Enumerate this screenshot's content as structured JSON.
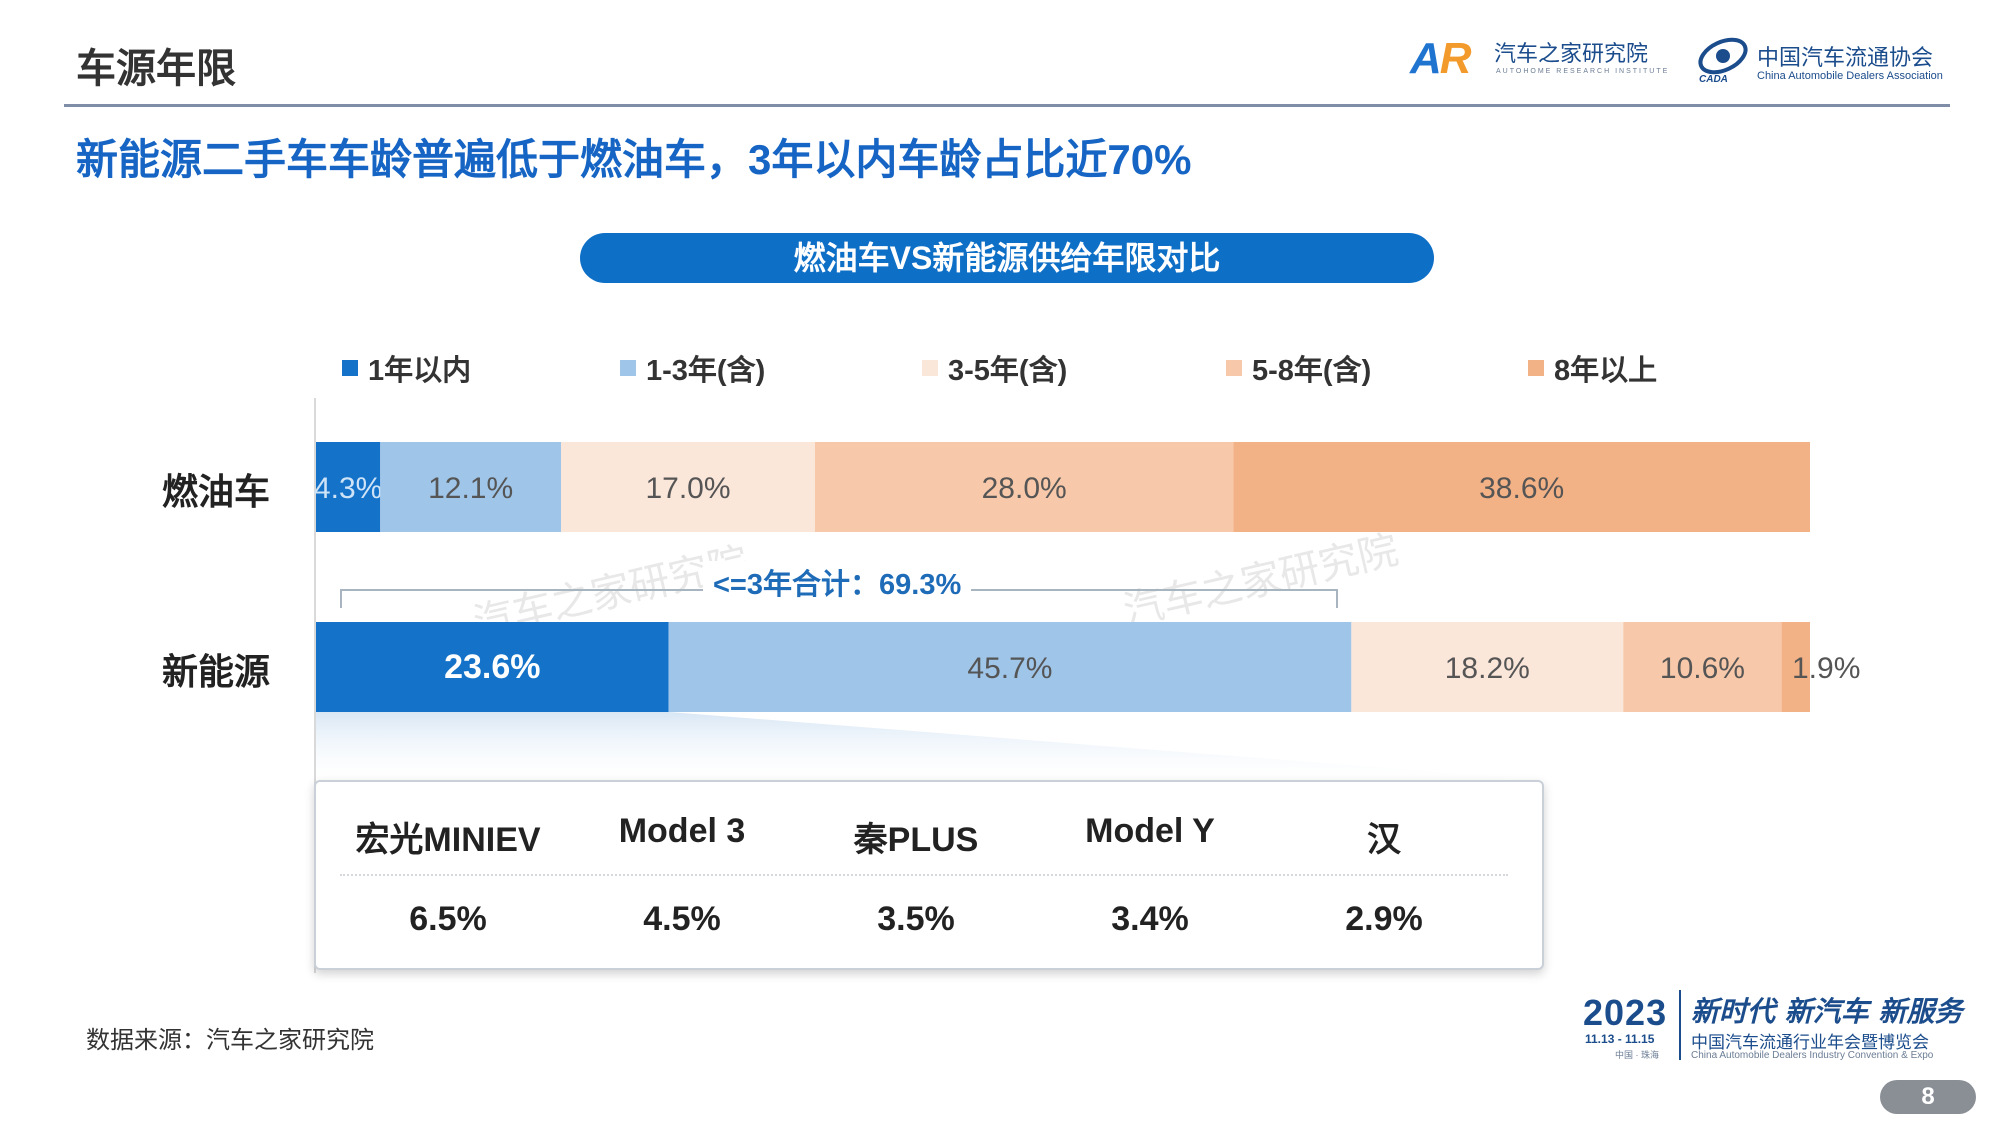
{
  "header": {
    "page_title": "车源年限",
    "logo_ar_cn": "汽车之家研究院",
    "logo_ar_en": "AUTOHOME RESEARCH INSTITUTE",
    "logo_cada_cn": "中国汽车流通协会",
    "logo_cada_en": "China Automobile Dealers Association"
  },
  "subtitle": "新能源二手车车龄普遍低于燃油车，3年以内车龄占比近70%",
  "chart_data": {
    "type": "bar",
    "orientation": "horizontal",
    "stacked": true,
    "normalized": true,
    "title": "燃油车VS新能源供给年限对比",
    "categories": [
      "燃油车",
      "新能源"
    ],
    "series": [
      {
        "name": "1年以内",
        "values": [
          4.3,
          23.6
        ],
        "labels": [
          "4.3%",
          "23.6%"
        ],
        "color": "#1473c9"
      },
      {
        "name": "1-3年(含)",
        "values": [
          12.1,
          45.7
        ],
        "labels": [
          "12.1%",
          "45.7%"
        ],
        "color": "#9fc5e9"
      },
      {
        "name": "3-5年(含)",
        "values": [
          17.0,
          18.2
        ],
        "labels": [
          "17.0%",
          "18.2%"
        ],
        "color": "#fbe6da"
      },
      {
        "name": "5-8年(含)",
        "values": [
          28.0,
          10.6
        ],
        "labels": [
          "28.0%",
          "10.6%"
        ],
        "color": "#f7c9aa"
      },
      {
        "name": "8年以上",
        "values": [
          38.6,
          1.9
        ],
        "labels": [
          "38.6%",
          "1.9%"
        ],
        "color": "#f3b186"
      }
    ],
    "annotation": "<=3年合计：69.3%",
    "legend_position": "top",
    "grid": false
  },
  "top_models": [
    {
      "name": "宏光MINIEV",
      "share": "6.5%"
    },
    {
      "name": "Model 3",
      "share": "4.5%"
    },
    {
      "name": "秦PLUS",
      "share": "3.5%"
    },
    {
      "name": "Model Y",
      "share": "3.4%"
    },
    {
      "name": "汉",
      "share": "2.9%"
    }
  ],
  "watermark": "汽车之家研究院",
  "source": "数据来源：汽车之家研究院",
  "expo": {
    "year": "2023",
    "dates": "11.13 - 11.15",
    "location": "中国 · 珠海",
    "slogan": "新时代 新汽车 新服务",
    "name_cn": "中国汽车流通行业年会暨博览会",
    "name_en": "China Automobile Dealers Industry Convention & Expo"
  },
  "page_number": "8"
}
